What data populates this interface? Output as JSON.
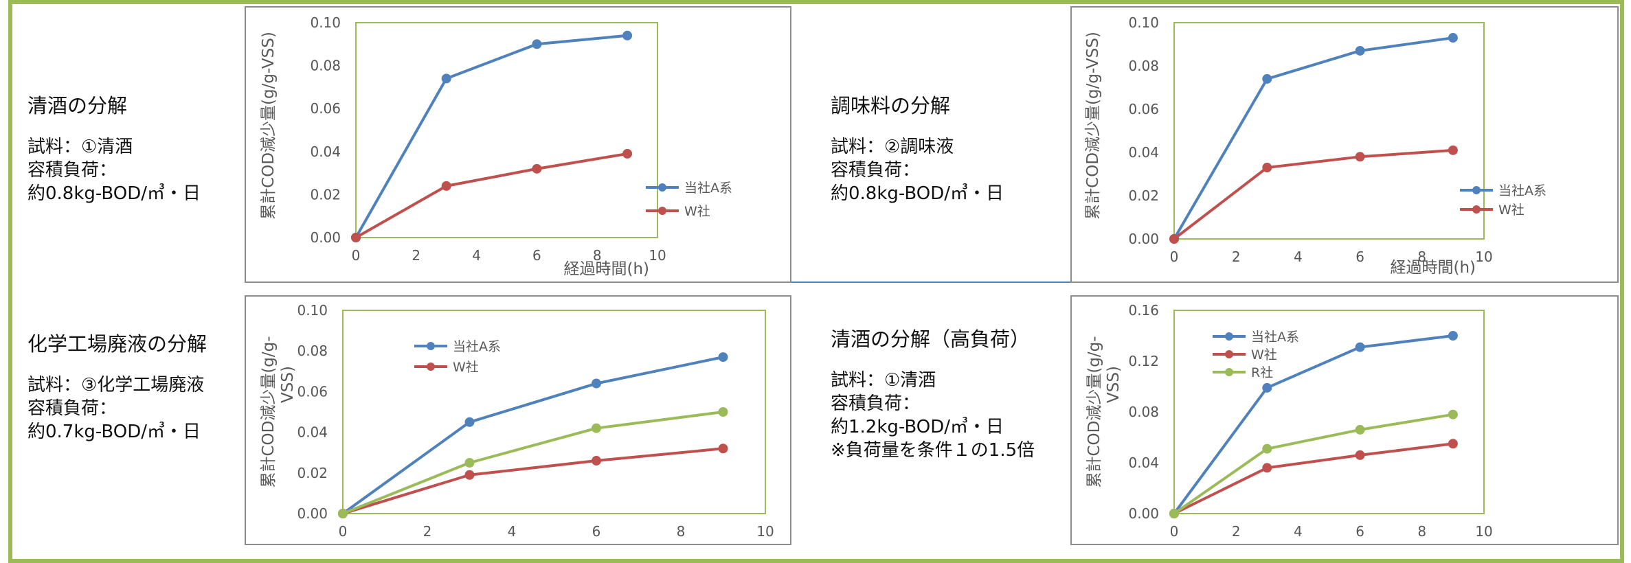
{
  "descriptions": [
    {
      "title": "清酒の分解",
      "lines": [
        "試料：①清酒",
        "容積負荷：",
        "約0.8kg-BOD/㎥・日"
      ]
    },
    {
      "title": "調味料の分解",
      "lines": [
        "試料：②調味液",
        "容積負荷：",
        "約0.8kg-BOD/㎥・日"
      ]
    },
    {
      "title": "化学工場廃液の分解",
      "lines": [
        "試料：③化学工場廃液",
        "容積負荷：",
        "約0.7kg-BOD/㎥・日"
      ]
    },
    {
      "title": "清酒の分解（高負荷）",
      "lines": [
        "試料：①清酒",
        "容積負荷：",
        "約1.2kg-BOD/㎥・日",
        "※負荷量を条件１の1.5倍"
      ]
    }
  ],
  "colors": {
    "frame": "#9bbb59",
    "blue": "#4f81bd",
    "red": "#c0504d",
    "green": "#9bbb59"
  },
  "chart_data": [
    {
      "type": "line",
      "ylabel": "累計COD減少量(g/g-VSS)",
      "xlabel": "経過時間(h)",
      "xlim": [
        0,
        10
      ],
      "xticks": [
        0,
        2,
        4,
        6,
        8,
        10
      ],
      "ylim": [
        0,
        0.1
      ],
      "yticks": [
        "0.00",
        "0.02",
        "0.04",
        "0.06",
        "0.08",
        "0.10"
      ],
      "legend": "bottom-right",
      "series": [
        {
          "name": "当社A系",
          "color": "#4f81bd",
          "x": [
            0,
            3,
            6,
            9
          ],
          "values": [
            0,
            0.074,
            0.09,
            0.094
          ]
        },
        {
          "name": "W社",
          "color": "#c0504d",
          "x": [
            0,
            3,
            6,
            9
          ],
          "values": [
            0,
            0.024,
            0.032,
            0.039
          ]
        }
      ]
    },
    {
      "type": "line",
      "ylabel": "累計COD減少量(g/g-VSS)",
      "xlabel": "経過時間(h)",
      "xlim": [
        0,
        10
      ],
      "xticks": [
        0,
        2,
        4,
        6,
        8,
        10
      ],
      "ylim": [
        0,
        0.1
      ],
      "yticks": [
        "0.00",
        "0.02",
        "0.04",
        "0.06",
        "0.08",
        "0.10"
      ],
      "legend": "bottom-right",
      "series": [
        {
          "name": "当社A系",
          "color": "#4f81bd",
          "x": [
            0,
            3,
            6,
            9
          ],
          "values": [
            0,
            0.074,
            0.087,
            0.093
          ]
        },
        {
          "name": "W社",
          "color": "#c0504d",
          "x": [
            0,
            3,
            6,
            9
          ],
          "values": [
            0,
            0.033,
            0.038,
            0.041
          ]
        }
      ]
    },
    {
      "type": "line",
      "ylabel": "累計COD減少量(g/g-VSS)",
      "xlabel": "",
      "xlim": [
        0,
        10
      ],
      "xticks": [
        0,
        2,
        4,
        6,
        8,
        10
      ],
      "ylim": [
        0,
        0.1
      ],
      "yticks": [
        "0.00",
        "0.02",
        "0.04",
        "0.06",
        "0.08",
        "0.10"
      ],
      "legend": "top-left",
      "series": [
        {
          "name": "当社A系",
          "color": "#4f81bd",
          "x": [
            0,
            3,
            6,
            9
          ],
          "values": [
            0,
            0.045,
            0.064,
            0.077
          ]
        },
        {
          "name": "W社",
          "color": "#c0504d",
          "x": [
            0,
            3,
            6,
            9
          ],
          "values": [
            0,
            0.019,
            0.026,
            0.032
          ]
        },
        {
          "color": "#9bbb59",
          "x": [
            0,
            3,
            6,
            9
          ],
          "values": [
            0,
            0.025,
            0.042,
            0.05
          ]
        }
      ]
    },
    {
      "type": "line",
      "ylabel": "累計COD減少量(g/g-VSS)",
      "xlabel": "",
      "xlim": [
        0,
        10
      ],
      "xticks": [
        0,
        2,
        4,
        6,
        8,
        10
      ],
      "ylim": [
        0,
        0.16
      ],
      "yticks": [
        "0.00",
        "0.04",
        "0.08",
        "0.12",
        "0.16"
      ],
      "legend": "top-left",
      "series": [
        {
          "name": "当社A系",
          "color": "#4f81bd",
          "x": [
            0,
            3,
            6,
            9
          ],
          "values": [
            0,
            0.099,
            0.131,
            0.14
          ]
        },
        {
          "name": "W社",
          "color": "#c0504d",
          "x": [
            0,
            3,
            6,
            9
          ],
          "values": [
            0,
            0.036,
            0.046,
            0.055
          ]
        },
        {
          "name": "R社",
          "color": "#9bbb59",
          "x": [
            0,
            3,
            6,
            9
          ],
          "values": [
            0,
            0.051,
            0.066,
            0.078
          ]
        }
      ]
    }
  ]
}
